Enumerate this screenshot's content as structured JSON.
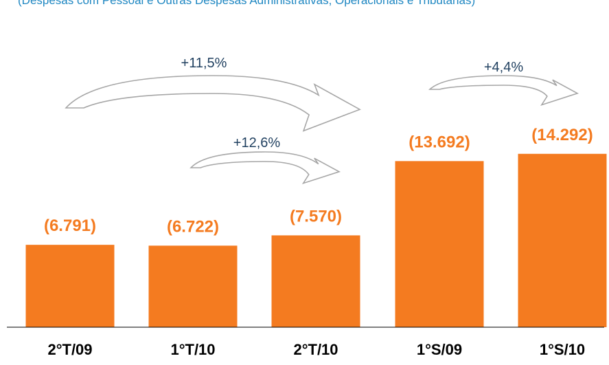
{
  "subtitle": "(Despesas com Pessoal e Outras Despesas Administrativas, Operacionais e Tributárias)",
  "colors": {
    "bar": "#F47B20",
    "label": "#F47B20",
    "category": "#000000",
    "growth_text": "#1F3F5F",
    "arrow_stroke": "#A6A6A6"
  },
  "chart_data": {
    "type": "bar",
    "categories": [
      "2°T/09",
      "1°T/10",
      "2°T/10",
      "1°S/09",
      "1°S/10"
    ],
    "values": [
      6791,
      6722,
      7570,
      13692,
      14292
    ],
    "data_labels": [
      "(6.791)",
      "(6.722)",
      "(7.570)",
      "(13.692)",
      "(14.292)"
    ],
    "annotations": [
      {
        "text": "+11,5%",
        "from": "2°T/09",
        "to": "2°T/10"
      },
      {
        "text": "+12,6%",
        "from": "1°T/10",
        "to": "2°T/10"
      },
      {
        "text": "+4,4%",
        "from": "1°S/09",
        "to": "1°S/10"
      }
    ],
    "ylim": [
      0,
      17000
    ],
    "grid": false,
    "legend": "none"
  }
}
